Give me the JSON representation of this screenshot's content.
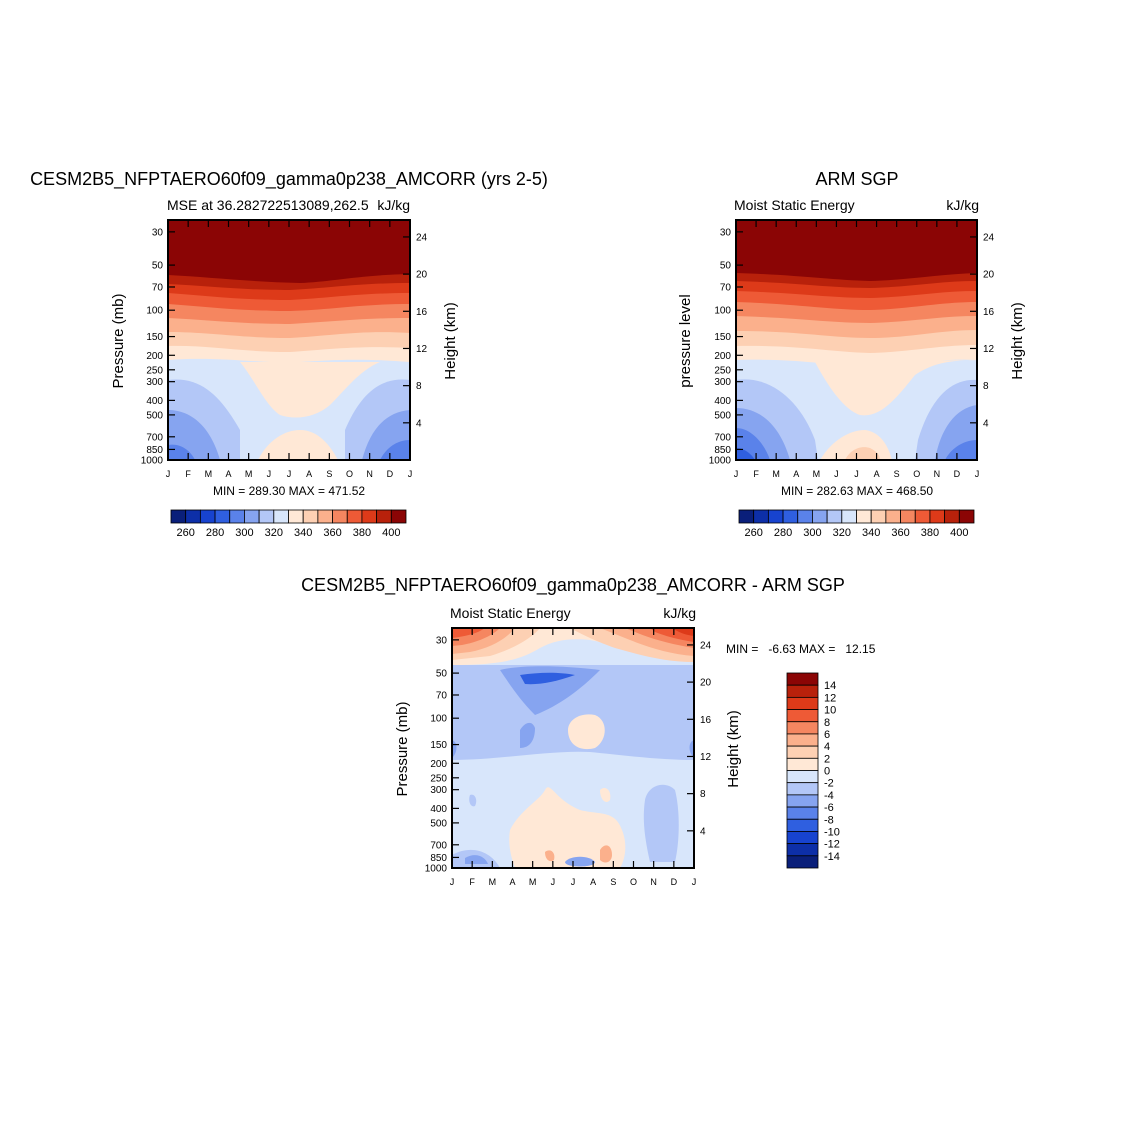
{
  "chart_data": [
    {
      "type": "contour",
      "title": "CESM2B5_NFPTAERO60f09_gamma0p238_AMCORR (yrs 2-5)",
      "subtitle_left": "MSE at 36.282722513089,262.5",
      "subtitle_right": "kJ/kg",
      "ylabel": "Pressure (mb)",
      "ylabel_right": "Height (km)",
      "x_ticks": [
        "J",
        "F",
        "M",
        "A",
        "M",
        "J",
        "J",
        "A",
        "S",
        "O",
        "N",
        "D",
        "J"
      ],
      "y_ticks": [
        "30",
        "50",
        "70",
        "100",
        "150",
        "200",
        "250",
        "300",
        "400",
        "500",
        "700",
        "850",
        "1000"
      ],
      "y_right_ticks": [
        "24",
        "20",
        "16",
        "12",
        "8",
        "4"
      ],
      "stats": "MIN = 289.30 MAX = 471.52",
      "colorbar_labels": [
        "260",
        "280",
        "300",
        "320",
        "340",
        "360",
        "380",
        "400"
      ],
      "ylim": [
        1000,
        25
      ]
    },
    {
      "type": "contour",
      "title": "ARM SGP",
      "subtitle_left": "Moist Static Energy",
      "subtitle_right": "kJ/kg",
      "ylabel": "pressure level",
      "ylabel_right": "Height (km)",
      "x_ticks": [
        "J",
        "F",
        "M",
        "A",
        "M",
        "J",
        "J",
        "A",
        "S",
        "O",
        "N",
        "D",
        "J"
      ],
      "y_ticks": [
        "30",
        "50",
        "70",
        "100",
        "150",
        "200",
        "250",
        "300",
        "400",
        "500",
        "700",
        "850",
        "1000"
      ],
      "y_right_ticks": [
        "24",
        "20",
        "16",
        "12",
        "8",
        "4"
      ],
      "stats": "MIN = 282.63 MAX = 468.50",
      "colorbar_labels": [
        "260",
        "280",
        "300",
        "320",
        "340",
        "360",
        "380",
        "400"
      ],
      "ylim": [
        1000,
        25
      ]
    },
    {
      "type": "contour",
      "title": "CESM2B5_NFPTAERO60f09_gamma0p238_AMCORR - ARM SGP",
      "subtitle_left": "Moist Static Energy",
      "subtitle_right": "kJ/kg",
      "ylabel": "Pressure (mb)",
      "ylabel_right": "Height (km)",
      "x_ticks": [
        "J",
        "F",
        "M",
        "A",
        "M",
        "J",
        "J",
        "A",
        "S",
        "O",
        "N",
        "D",
        "J"
      ],
      "y_ticks": [
        "30",
        "50",
        "70",
        "100",
        "150",
        "200",
        "250",
        "300",
        "400",
        "500",
        "700",
        "850",
        "1000"
      ],
      "y_right_ticks": [
        "24",
        "20",
        "16",
        "12",
        "8",
        "4"
      ],
      "stats": "MIN =   -6.63 MAX =   12.15",
      "colorbar_labels": [
        "14",
        "12",
        "10",
        "8",
        "6",
        "4",
        "2",
        "0",
        "-2",
        "-4",
        "-6",
        "-8",
        "-10",
        "-12",
        "-14"
      ],
      "ylim": [
        1000,
        25
      ]
    }
  ],
  "colors": {
    "full_palette": [
      "#0a1f7a",
      "#0d2fa8",
      "#1743cf",
      "#2f5fe0",
      "#5a82ea",
      "#86a4f0",
      "#b3c7f7",
      "#d8e6fb",
      "#ffe8d6",
      "#fdd0b3",
      "#fbb08c",
      "#f58660",
      "#ee5a36",
      "#dd3a19",
      "#b8210b",
      "#8b0505"
    ],
    "diff_palette": [
      "#8b0505",
      "#b8210b",
      "#dd3a19",
      "#ee5a36",
      "#f58660",
      "#fbb08c",
      "#fdd0b3",
      "#ffe8d6",
      "#d8e6fb",
      "#b3c7f7",
      "#86a4f0",
      "#5a82ea",
      "#2f5fe0",
      "#1743cf",
      "#0d2fa8",
      "#0a1f7a"
    ]
  }
}
